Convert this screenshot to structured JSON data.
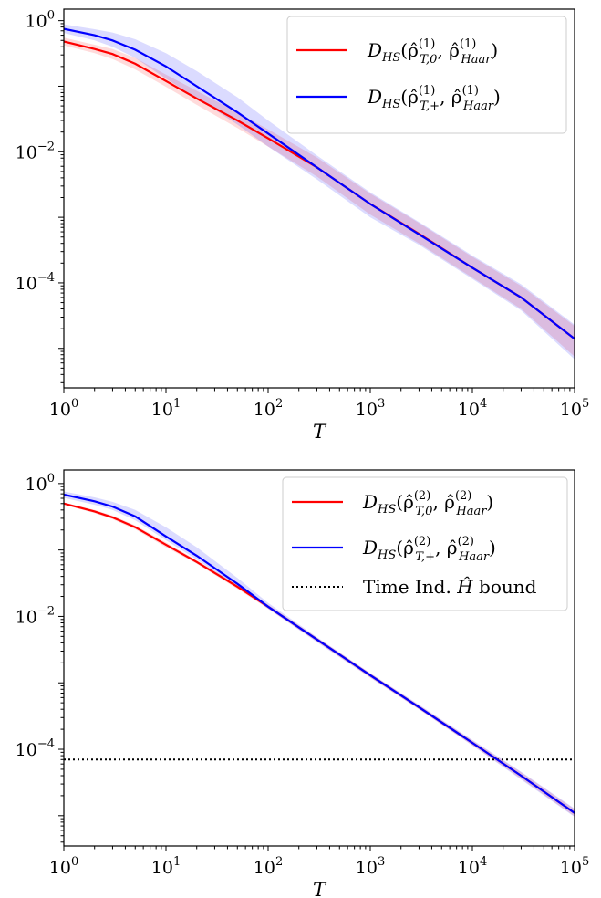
{
  "chart_data": [
    {
      "type": "line",
      "xscale": "log",
      "yscale": "log",
      "xlim": [
        1,
        100000
      ],
      "ylim": [
        2.5e-06,
        1.5
      ],
      "xlabel": "T",
      "ylabel": "",
      "x_ticks": [
        {
          "base": "10",
          "exp": "0"
        },
        {
          "base": "10",
          "exp": "1"
        },
        {
          "base": "10",
          "exp": "2"
        },
        {
          "base": "10",
          "exp": "3"
        },
        {
          "base": "10",
          "exp": "4"
        },
        {
          "base": "10",
          "exp": "5"
        }
      ],
      "y_ticks": [
        {
          "value": 1,
          "base": "10",
          "exp": "0"
        },
        {
          "value": 0.01,
          "base": "10",
          "exp": "−2"
        },
        {
          "value": 0.0001,
          "base": "10",
          "exp": "−4"
        }
      ],
      "legend_position": "top-right",
      "series": [
        {
          "legend_main": "D",
          "legend_sub_main": "HS",
          "legend_args": "(ρ̂",
          "legend_sup": "(1)",
          "legend_sub": "T,0",
          "legend_args2": ", ρ̂",
          "legend_sup2": "(1)",
          "legend_sub2": "Haar",
          "legend_close": ")",
          "color": "#ff0000",
          "x": [
            1,
            2,
            3,
            5,
            10,
            20,
            50,
            100,
            300,
            1000,
            3000,
            10000,
            30000,
            100000
          ],
          "y": [
            0.48,
            0.37,
            0.31,
            0.22,
            0.12,
            0.065,
            0.03,
            0.016,
            0.0058,
            0.0016,
            0.00056,
            0.00017,
            6e-05,
            1.4e-05
          ],
          "band_hi": [
            0.55,
            0.43,
            0.37,
            0.27,
            0.15,
            0.085,
            0.04,
            0.022,
            0.0082,
            0.0023,
            0.00082,
            0.00025,
            9e-05,
            2.2e-05
          ],
          "band_lo": [
            0.42,
            0.32,
            0.26,
            0.18,
            0.098,
            0.052,
            0.023,
            0.012,
            0.0042,
            0.0011,
            0.0004,
            0.00012,
            4e-05,
            7.5e-06
          ]
        },
        {
          "legend_main": "D",
          "legend_sub_main": "HS",
          "legend_args": "(ρ̂",
          "legend_sup": "(1)",
          "legend_sub": "T,+",
          "legend_args2": ", ρ̂",
          "legend_sup2": "(1)",
          "legend_sub2": "Haar",
          "legend_close": ")",
          "color": "#0000ff",
          "x": [
            1,
            2,
            3,
            5,
            10,
            20,
            50,
            100,
            300,
            1000,
            3000,
            10000,
            30000,
            100000
          ],
          "y": [
            0.75,
            0.6,
            0.5,
            0.36,
            0.2,
            0.1,
            0.04,
            0.019,
            0.0058,
            0.0016,
            0.00055,
            0.00017,
            6e-05,
            1.4e-05
          ],
          "band_hi": [
            0.88,
            0.74,
            0.66,
            0.52,
            0.32,
            0.17,
            0.068,
            0.03,
            0.0088,
            0.0024,
            0.00085,
            0.00026,
            9.5e-05,
            2.3e-05
          ],
          "band_lo": [
            0.65,
            0.5,
            0.4,
            0.27,
            0.13,
            0.066,
            0.026,
            0.012,
            0.0038,
            0.001,
            0.00038,
            0.000115,
            3.8e-05,
            6.8e-06
          ]
        }
      ]
    },
    {
      "type": "line",
      "xscale": "log",
      "yscale": "log",
      "xlim": [
        1,
        100000
      ],
      "ylim": [
        3.5e-06,
        1.6
      ],
      "xlabel": "T",
      "ylabel": "",
      "x_ticks": [
        {
          "base": "10",
          "exp": "0"
        },
        {
          "base": "10",
          "exp": "1"
        },
        {
          "base": "10",
          "exp": "2"
        },
        {
          "base": "10",
          "exp": "3"
        },
        {
          "base": "10",
          "exp": "4"
        },
        {
          "base": "10",
          "exp": "5"
        }
      ],
      "y_ticks": [
        {
          "value": 1,
          "base": "10",
          "exp": "0"
        },
        {
          "value": 0.01,
          "base": "10",
          "exp": "−2"
        },
        {
          "value": 0.0001,
          "base": "10",
          "exp": "−4"
        }
      ],
      "legend_position": "top-right",
      "hline": {
        "y": 7e-05,
        "color": "#000000",
        "legend_label": "Time Ind. ",
        "legend_hat": "Ĥ",
        "legend_label2": " bound"
      },
      "series": [
        {
          "legend_main": "D",
          "legend_sub_main": "HS",
          "legend_args": "(ρ̂",
          "legend_sup": "(2)",
          "legend_sub": "T,0",
          "legend_args2": ", ρ̂",
          "legend_sup2": "(2)",
          "legend_sub2": "Haar",
          "legend_close": ")",
          "color": "#ff0000",
          "x": [
            1,
            2,
            3,
            5,
            10,
            20,
            50,
            100,
            300,
            1000,
            3000,
            10000,
            30000,
            100000
          ],
          "y": [
            0.5,
            0.38,
            0.31,
            0.22,
            0.12,
            0.066,
            0.028,
            0.014,
            0.0045,
            0.0013,
            0.00043,
            0.000125,
            4e-05,
            1.1e-05
          ],
          "band_hi": [
            0.52,
            0.4,
            0.33,
            0.235,
            0.13,
            0.07,
            0.03,
            0.015,
            0.0048,
            0.0014,
            0.00046,
            0.000135,
            4.5e-05,
            1.25e-05
          ],
          "band_lo": [
            0.48,
            0.36,
            0.29,
            0.205,
            0.11,
            0.062,
            0.026,
            0.013,
            0.0042,
            0.0012,
            0.0004,
            0.000115,
            3.6e-05,
            9.8e-06
          ]
        },
        {
          "legend_main": "D",
          "legend_sub_main": "HS",
          "legend_args": "(ρ̂",
          "legend_sup": "(2)",
          "legend_sub": "T,+",
          "legend_args2": ", ρ̂",
          "legend_sup2": "(2)",
          "legend_sub2": "Haar",
          "legend_close": ")",
          "color": "#0000ff",
          "x": [
            1,
            2,
            3,
            5,
            10,
            20,
            50,
            100,
            300,
            1000,
            3000,
            10000,
            30000,
            100000
          ],
          "y": [
            0.68,
            0.54,
            0.45,
            0.32,
            0.16,
            0.082,
            0.031,
            0.014,
            0.0045,
            0.0013,
            0.00043,
            0.000125,
            4e-05,
            1.1e-05
          ],
          "band_hi": [
            0.76,
            0.62,
            0.53,
            0.4,
            0.22,
            0.11,
            0.038,
            0.016,
            0.0049,
            0.0014,
            0.00047,
            0.000138,
            4.6e-05,
            1.28e-05
          ],
          "band_lo": [
            0.61,
            0.48,
            0.4,
            0.28,
            0.14,
            0.072,
            0.028,
            0.013,
            0.0041,
            0.0012,
            0.0004,
            0.000114,
            3.5e-05,
            9.6e-06
          ]
        }
      ]
    }
  ]
}
